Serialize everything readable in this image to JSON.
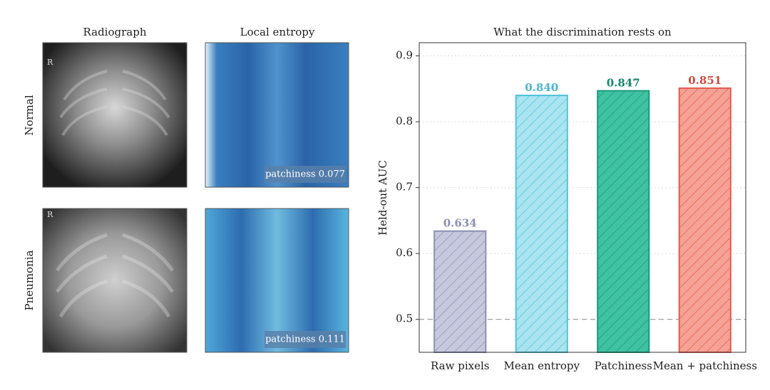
{
  "image_grid": {
    "columns": [
      "Radiograph",
      "Local entropy"
    ],
    "rows": [
      "Normal",
      "Pneumonia"
    ],
    "annotations": [
      "patchiness 0.077",
      "patchiness 0.111"
    ],
    "xray_marks": [
      "R",
      "R"
    ]
  },
  "chart_data": {
    "type": "bar",
    "title": "What the discrimination rests on",
    "ylabel": "Held-out AUC",
    "categories": [
      "Raw pixels",
      "Mean entropy",
      "Patchiness",
      "Mean + patchiness"
    ],
    "values": [
      0.634,
      0.84,
      0.847,
      0.851
    ],
    "value_labels": [
      "0.634",
      "0.840",
      "0.847",
      "0.851"
    ],
    "colors": [
      "#c6c9de",
      "#a9e4f0",
      "#3fc2a2",
      "#f6a296"
    ],
    "edge_colors": [
      "#8b90b2",
      "#4fc3da",
      "#1a9b7a",
      "#e35b4b"
    ],
    "label_colors": [
      "#8b90b2",
      "#4ab6cf",
      "#16876a",
      "#d04a3e"
    ],
    "ylim": [
      0.45,
      0.92
    ],
    "yticks": [
      0.5,
      0.6,
      0.7,
      0.8,
      0.9
    ],
    "grid": true,
    "reference_line": 0.5
  }
}
